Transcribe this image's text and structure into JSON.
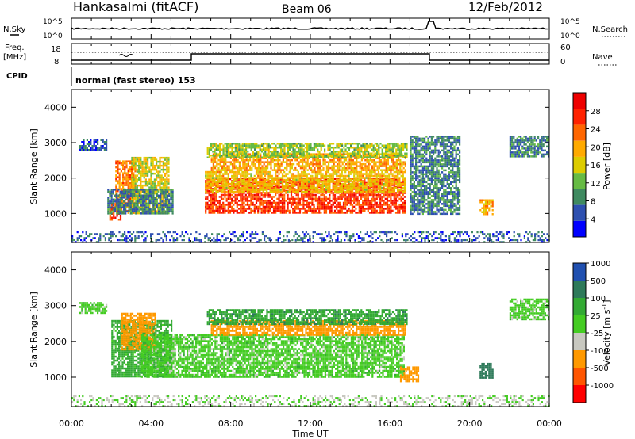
{
  "header": {
    "station": "Hankasalmi (fitACF)",
    "beam": "Beam 06",
    "date": "12/Feb/2012"
  },
  "noise_panel": {
    "left_label": "N.Sky",
    "right_label": "N.Search",
    "left_ticks": [
      "10^5",
      "10^0"
    ],
    "right_ticks": [
      "10^5",
      "10^0"
    ]
  },
  "freq_panel": {
    "left_label_top": "Freq.",
    "left_label_bottom": "[MHz]",
    "left_ticks": [
      "18",
      "8"
    ],
    "right_label": "Nave",
    "right_ticks": [
      "60",
      "0"
    ],
    "cpid_label": "CPID",
    "cpid_value": "normal (fast stereo) 153"
  },
  "time_axis": {
    "ticks": [
      "00:00",
      "04:00",
      "08:00",
      "12:00",
      "16:00",
      "20:00",
      "00:00"
    ],
    "label": "Time UT"
  },
  "colors": {
    "power": [
      "#0000ff",
      "#2e50b0",
      "#3f8a60",
      "#66bb44",
      "#ddcc00",
      "#ffaa00",
      "#ff6600",
      "#ff2200",
      "#ee0000"
    ],
    "velocity": [
      "#ff0000",
      "#ff5500",
      "#ff9900",
      "#c8c8c0",
      "#44cc22",
      "#33aa33",
      "#2e7a5a",
      "#2050b0"
    ]
  },
  "chart_data": [
    {
      "type": "heatmap",
      "panel": "power",
      "ylabel": "Slant Range [km]",
      "yticks": [
        "1000",
        "2000",
        "3000",
        "4000"
      ],
      "ylim": [
        180,
        4500
      ],
      "xlim": [
        0,
        24
      ],
      "colorbar_label": "Power [dB]",
      "colorbar_ticks": [
        "4",
        "8",
        "12",
        "16",
        "20",
        "24",
        "28"
      ],
      "colorbar_range": [
        0,
        32
      ],
      "echo_regions": [
        {
          "t0": 1.9,
          "t1": 2.5,
          "r0": 800,
          "r1": 1300,
          "value": 26
        },
        {
          "t0": 2.2,
          "t1": 3.2,
          "r0": 1000,
          "r1": 2500,
          "value": 22
        },
        {
          "t0": 3.0,
          "t1": 4.9,
          "r0": 1000,
          "r1": 2600,
          "value": 16
        },
        {
          "t0": 1.8,
          "t1": 5.1,
          "r0": 1000,
          "r1": 1700,
          "value": 8
        },
        {
          "t0": 0.4,
          "t1": 1.8,
          "r0": 2800,
          "r1": 3100,
          "value": 6
        },
        {
          "t0": 6.7,
          "t1": 16.7,
          "r0": 1000,
          "r1": 2000,
          "value": 26
        },
        {
          "t0": 6.7,
          "t1": 16.7,
          "r0": 1600,
          "r1": 2200,
          "value": 18
        },
        {
          "t0": 7.0,
          "t1": 16.8,
          "r0": 2200,
          "r1": 2700,
          "value": 20
        },
        {
          "t0": 6.8,
          "t1": 16.8,
          "r0": 2600,
          "r1": 3000,
          "value": 14
        },
        {
          "t0": 17.0,
          "t1": 19.5,
          "r0": 1000,
          "r1": 3200,
          "value": 8
        },
        {
          "t0": 20.5,
          "t1": 21.2,
          "r0": 1000,
          "r1": 1400,
          "value": 20
        },
        {
          "t0": 22.0,
          "t1": 24.0,
          "r0": 2600,
          "r1": 3200,
          "value": 8
        },
        {
          "t0": 0.0,
          "t1": 24.0,
          "r0": 180,
          "r1": 500,
          "value": 6
        }
      ]
    },
    {
      "type": "heatmap",
      "panel": "velocity",
      "ylabel": "Slant Range [km]",
      "yticks": [
        "1000",
        "2000",
        "3000",
        "4000"
      ],
      "ylim": [
        180,
        4500
      ],
      "xlim": [
        0,
        24
      ],
      "colorbar_label": "Velocity [m s^-1]",
      "colorbar_ticks": [
        "-1000",
        "-500",
        "-100",
        "-25",
        "25",
        "100",
        "500",
        "1000"
      ],
      "echo_regions": [
        {
          "t0": 2.0,
          "t1": 5.0,
          "r0": 1000,
          "r1": 2600,
          "value": 50
        },
        {
          "t0": 2.5,
          "t1": 4.2,
          "r0": 1800,
          "r1": 2800,
          "value": -200
        },
        {
          "t0": 3.5,
          "t1": 16.7,
          "r0": 1000,
          "r1": 2200,
          "value": 0
        },
        {
          "t0": 7.0,
          "t1": 16.8,
          "r0": 2200,
          "r1": 2600,
          "value": -150
        },
        {
          "t0": 6.8,
          "t1": 16.8,
          "r0": 2500,
          "r1": 2900,
          "value": 80
        },
        {
          "t0": 16.5,
          "t1": 17.4,
          "r0": 900,
          "r1": 1300,
          "value": -200
        },
        {
          "t0": 0.4,
          "t1": 1.8,
          "r0": 2800,
          "r1": 3100,
          "value": 0
        },
        {
          "t0": 20.5,
          "t1": 21.2,
          "r0": 1000,
          "r1": 1400,
          "value": 400
        },
        {
          "t0": 22.0,
          "t1": 24.0,
          "r0": 2600,
          "r1": 3200,
          "value": 0
        },
        {
          "t0": 0.0,
          "t1": 24.0,
          "r0": 180,
          "r1": 500,
          "value": -30
        }
      ]
    }
  ]
}
